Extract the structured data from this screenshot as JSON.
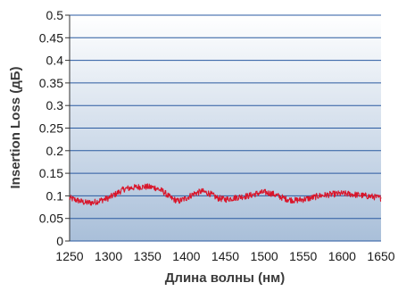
{
  "chart_data": {
    "type": "line",
    "title": "",
    "xlabel": "Длина волны (нм)",
    "ylabel": "Insertion Loss (дБ)",
    "xlim": [
      1250,
      1650
    ],
    "ylim": [
      0,
      0.5
    ],
    "x_ticks": [
      "1250",
      "1300",
      "1350",
      "1400",
      "1450",
      "1500",
      "1550",
      "1600",
      "1650"
    ],
    "y_ticks": [
      "0",
      "0.05",
      "0.1",
      "0.15",
      "0.2",
      "0.25",
      "0.3",
      "0.35",
      "0.4",
      "0.45",
      "0.5"
    ],
    "grid": true,
    "legend": "none",
    "colors": {
      "line": "#d9152a",
      "plot_bg_top": "#ffffff",
      "plot_bg_bottom": "#a9bfd9",
      "grid": "#2a5aa0"
    },
    "series": [
      {
        "x": [
          1250,
          1260,
          1270,
          1280,
          1290,
          1300,
          1310,
          1320,
          1330,
          1340,
          1350,
          1360,
          1370,
          1380,
          1390,
          1400,
          1410,
          1420,
          1430,
          1440,
          1450,
          1460,
          1470,
          1480,
          1490,
          1500,
          1510,
          1520,
          1530,
          1540,
          1550,
          1560,
          1570,
          1580,
          1590,
          1600,
          1610,
          1620,
          1630,
          1640,
          1650
        ],
        "values": [
          0.095,
          0.09,
          0.085,
          0.085,
          0.09,
          0.095,
          0.105,
          0.115,
          0.118,
          0.12,
          0.12,
          0.118,
          0.11,
          0.095,
          0.088,
          0.095,
          0.105,
          0.11,
          0.105,
          0.095,
          0.092,
          0.095,
          0.098,
          0.1,
          0.105,
          0.108,
          0.105,
          0.098,
          0.092,
          0.09,
          0.092,
          0.095,
          0.1,
          0.102,
          0.104,
          0.105,
          0.104,
          0.102,
          0.1,
          0.098,
          0.095
        ]
      }
    ]
  }
}
